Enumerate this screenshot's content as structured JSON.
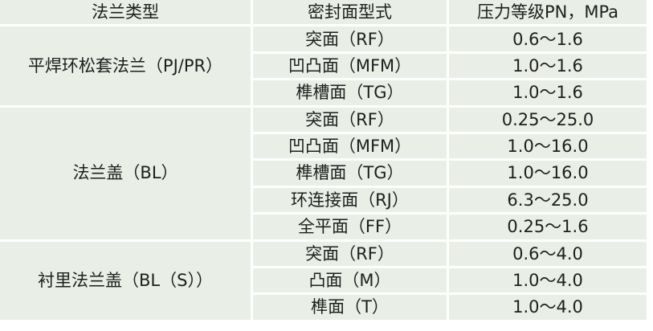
{
  "colors": {
    "cell_bg": "#e9efe7",
    "grid_line": "#ffffff",
    "text": "#1e1e1e",
    "page_bg": "#ffffff"
  },
  "table": {
    "headers": [
      "法兰类型",
      "密封面型式",
      "压力等级PN，MPa"
    ],
    "groups": [
      {
        "flange_type": "平焊环松套法兰（PJ/PR）",
        "rows": [
          {
            "seal_face": "突面（RF）",
            "pressure": "0.6～1.6"
          },
          {
            "seal_face": "凹凸面（MFM）",
            "pressure": "1.0～1.6"
          },
          {
            "seal_face": "榫槽面（TG）",
            "pressure": "1.0～1.6"
          }
        ]
      },
      {
        "flange_type": "法兰盖（BL）",
        "rows": [
          {
            "seal_face": "突面（RF）",
            "pressure": "0.25～25.0"
          },
          {
            "seal_face": "凹凸面（MFM）",
            "pressure": "1.0～16.0"
          },
          {
            "seal_face": "榫槽面（TG）",
            "pressure": "1.0～16.0"
          },
          {
            "seal_face": "环连接面（RJ）",
            "pressure": "6.3～25.0"
          },
          {
            "seal_face": "全平面（FF）",
            "pressure": "0.25～1.6"
          }
        ]
      },
      {
        "flange_type": "衬里法兰盖（BL（S））",
        "rows": [
          {
            "seal_face": "突面（RF）",
            "pressure": "0.6～4.0"
          },
          {
            "seal_face": "凸面（M）",
            "pressure": "1.0～4.0"
          },
          {
            "seal_face": "榫面（T）",
            "pressure": "1.0～4.0"
          }
        ]
      }
    ]
  }
}
